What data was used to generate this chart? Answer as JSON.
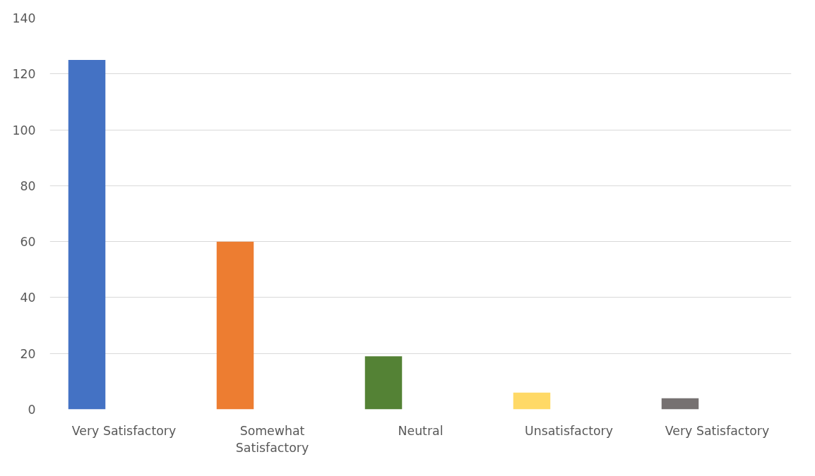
{
  "chart_data": {
    "type": "bar",
    "categories": [
      "Very Satisfactory",
      "Somewhat Satisfactory",
      "Neutral",
      "Unsatisfactory",
      "Very Satisfactory"
    ],
    "values": [
      125,
      60,
      19,
      6,
      4
    ],
    "colors": [
      "#4472c4",
      "#ed7d31",
      "#548235",
      "#ffd966",
      "#767171"
    ],
    "ylim": [
      0,
      140
    ],
    "yticks": [
      0,
      20,
      40,
      60,
      80,
      100,
      120,
      140
    ],
    "grid": "y"
  }
}
